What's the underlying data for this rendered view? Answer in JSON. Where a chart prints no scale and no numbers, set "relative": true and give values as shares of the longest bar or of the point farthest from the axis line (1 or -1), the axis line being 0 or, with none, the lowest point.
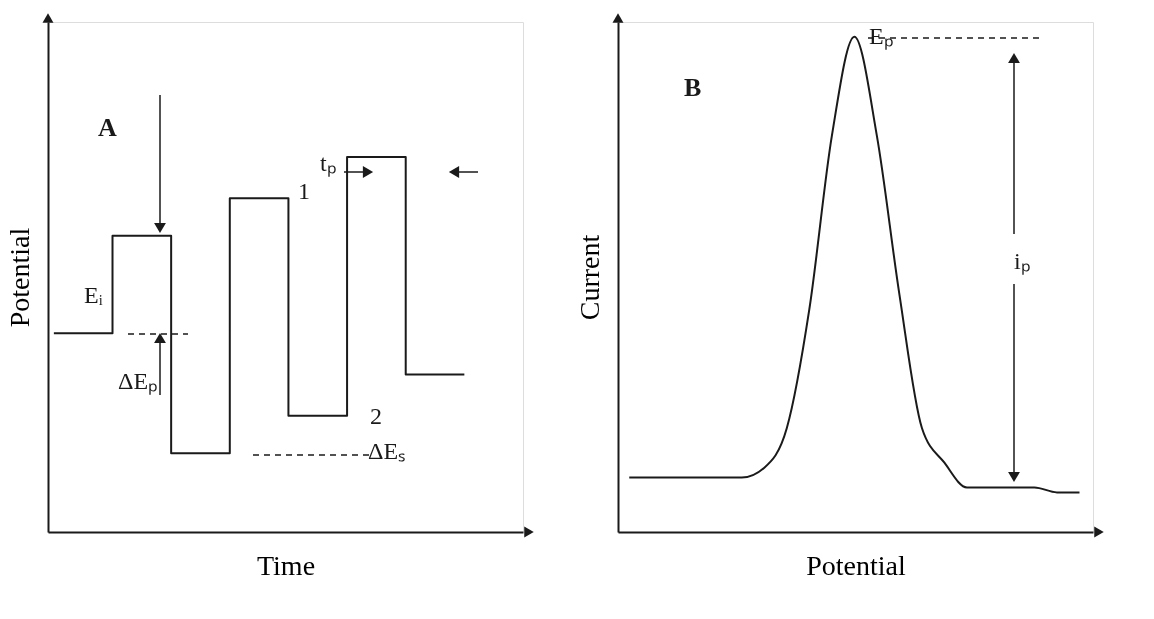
{
  "chart_data": [
    {
      "type": "step",
      "relative": true,
      "xlabel": "Time",
      "ylabel": "Potential",
      "categories": [
        null,
        null,
        null,
        null,
        null,
        null,
        null,
        null
      ],
      "series": [
        {
          "color": "#1a1a1a",
          "values": [
            0.53,
            0.79,
            0.21,
            0.89,
            0.31,
            1.0,
            0.42,
            0.42
          ]
        }
      ],
      "annotations": [
        "A",
        "Eᵢ",
        "ΔEₚ",
        "1",
        "tₚ",
        "2",
        "ΔEₛ"
      ]
    },
    {
      "type": "line",
      "relative": true,
      "xlabel": "Potential",
      "ylabel": "Current",
      "categories": [
        null,
        null,
        null,
        null,
        null,
        null,
        null,
        null,
        null,
        null,
        null,
        null,
        null,
        null,
        null,
        null,
        null,
        null,
        null,
        null,
        null
      ],
      "series": [
        {
          "color": "#1a1a1a",
          "values": [
            0.11,
            0.11,
            0.11,
            0.11,
            0.11,
            0.11,
            0.13,
            0.21,
            0.45,
            0.8,
            1.0,
            0.8,
            0.48,
            0.21,
            0.14,
            0.09,
            0.09,
            0.09,
            0.09,
            0.08,
            0.08
          ]
        }
      ],
      "annotations": [
        "B",
        "Eₚ",
        "iₚ"
      ]
    }
  ]
}
